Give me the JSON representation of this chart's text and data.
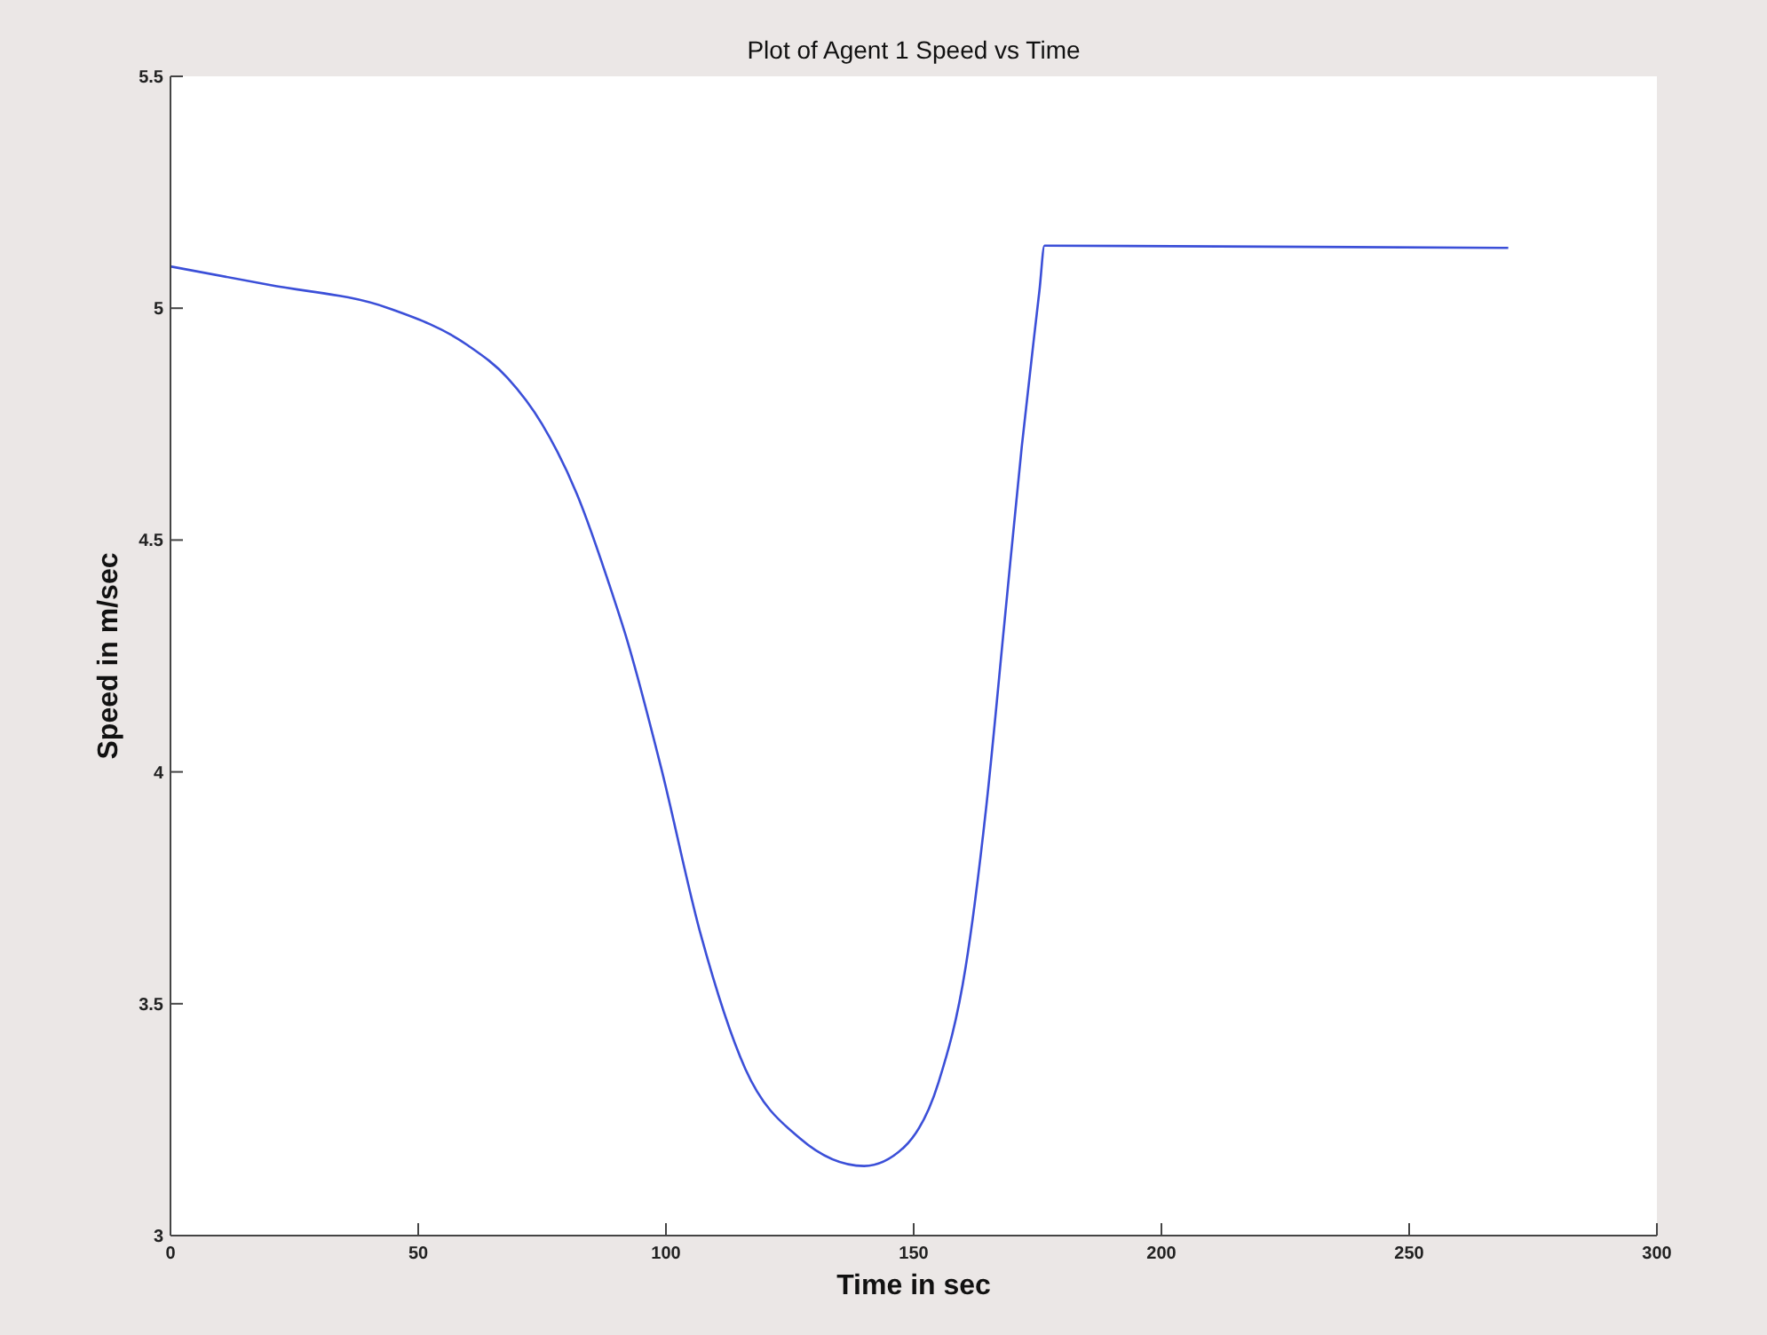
{
  "chart_data": {
    "type": "line",
    "title": "Plot of Agent 1 Speed vs Time",
    "xlabel": "Time in sec",
    "ylabel": "Speed in m/sec",
    "xlim": [
      0,
      300
    ],
    "xticks": [
      0,
      50,
      100,
      150,
      200,
      250,
      300
    ],
    "ylim": [
      3,
      5.5
    ],
    "yticks": [
      3,
      3.5,
      4,
      4.5,
      5,
      5.5
    ],
    "grid": false,
    "series": [
      {
        "color": "#3b4fd8",
        "x": [
          0,
          20,
          44,
          60,
          68,
          75,
          82,
          89,
          92,
          99,
          107,
          116,
          127,
          140,
          148,
          155,
          160.5,
          164.7,
          168.3,
          171.8,
          175.4,
          176.4,
          270
        ],
        "values": [
          5.09,
          5.05,
          5.0,
          4.92,
          4.85,
          4.75,
          4.6,
          4.39,
          4.29,
          4.01,
          3.65,
          3.36,
          3.21,
          3.15,
          3.19,
          3.33,
          3.58,
          3.93,
          4.32,
          4.7,
          5.04,
          5.135,
          5.13
        ]
      }
    ]
  }
}
